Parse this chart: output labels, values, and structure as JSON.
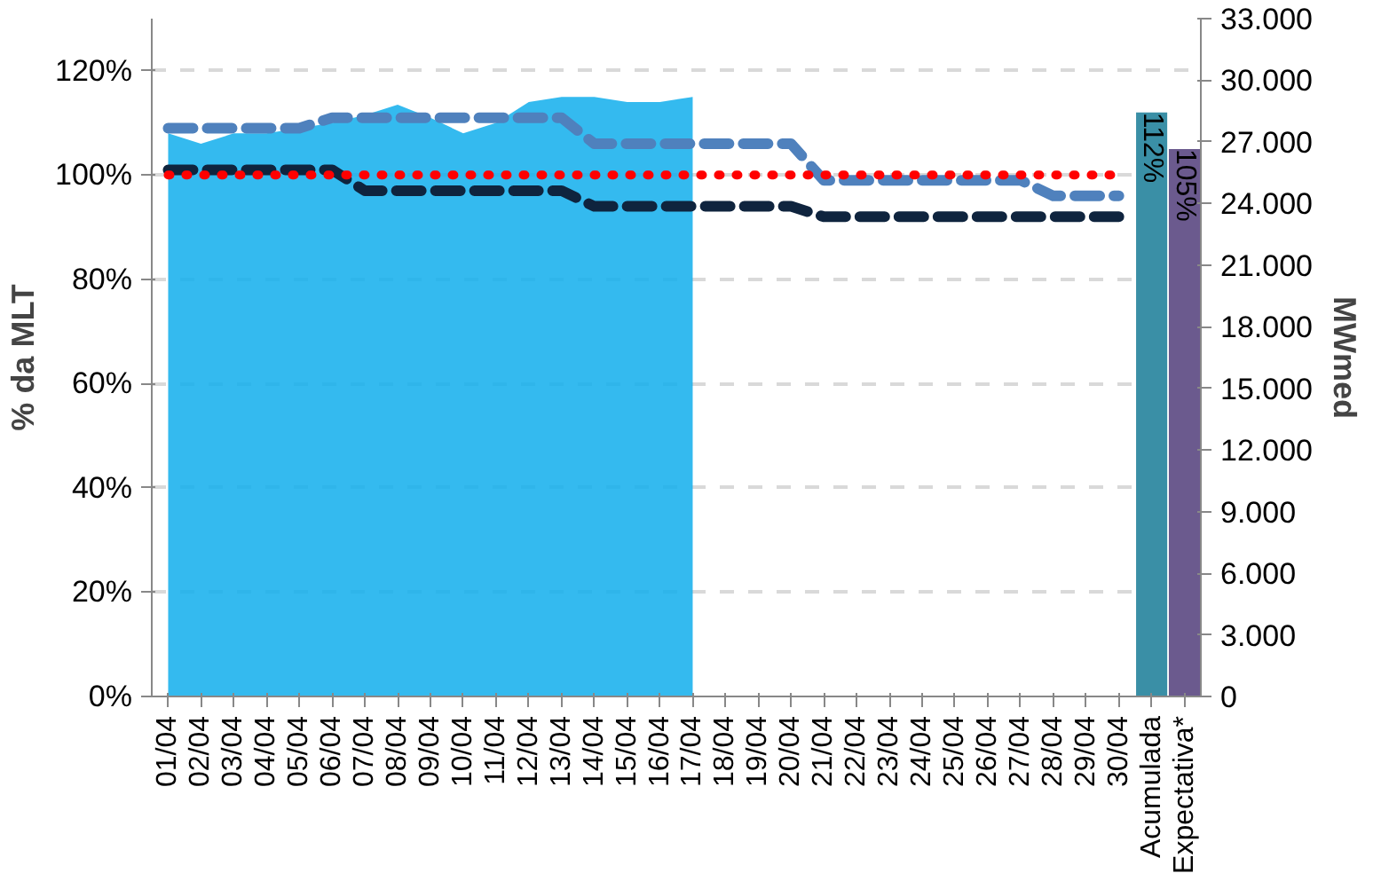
{
  "chart_data": {
    "type": "bar",
    "ylabel": "% da MLT",
    "y2label": "MWmed",
    "categories": [
      "01/04",
      "02/04",
      "03/04",
      "04/04",
      "05/04",
      "06/04",
      "07/04",
      "08/04",
      "09/04",
      "10/04",
      "11/04",
      "12/04",
      "13/04",
      "14/04",
      "15/04",
      "16/04",
      "17/04",
      "18/04",
      "19/04",
      "20/04",
      "21/04",
      "22/04",
      "23/04",
      "24/04",
      "25/04",
      "26/04",
      "27/04",
      "28/04",
      "29/04",
      "30/04",
      "Acumulada",
      "Expectativa*"
    ],
    "series": [
      {
        "type": "area",
        "color": "#10aeec",
        "values": [
          108,
          106,
          108,
          108,
          109,
          110,
          111.5,
          113.5,
          111,
          108,
          110,
          114,
          115,
          115,
          114,
          114,
          115,
          null,
          null,
          null,
          null,
          null,
          null,
          null,
          null,
          null,
          null,
          null,
          null,
          null,
          null,
          null
        ]
      },
      {
        "type": "line",
        "color": "#4f81bd",
        "line_style": "dashed",
        "values": [
          109,
          109,
          109,
          109,
          109,
          111,
          111,
          111,
          111,
          111,
          111,
          111,
          111,
          106,
          106,
          106,
          106,
          106,
          106,
          106,
          99,
          99,
          99,
          99,
          99,
          99,
          99,
          96,
          96,
          96,
          null,
          null
        ]
      },
      {
        "type": "line",
        "color": "#0f243e",
        "line_style": "dashed",
        "values": [
          101,
          101,
          101,
          101,
          101,
          101,
          97,
          97,
          97,
          97,
          97,
          97,
          97,
          94,
          94,
          94,
          94,
          94,
          94,
          94,
          92,
          92,
          92,
          92,
          92,
          92,
          92,
          92,
          92,
          92,
          null,
          null
        ]
      },
      {
        "type": "line",
        "color": "#ff0000",
        "line_style": "dotted",
        "values": [
          100,
          100,
          100,
          100,
          100,
          100,
          100,
          100,
          100,
          100,
          100,
          100,
          100,
          100,
          100,
          100,
          100,
          100,
          100,
          100,
          100,
          100,
          100,
          100,
          100,
          100,
          100,
          100,
          100,
          100,
          null,
          null
        ]
      },
      {
        "color": "#3a8fa6",
        "values": [
          null,
          null,
          null,
          null,
          null,
          null,
          null,
          null,
          null,
          null,
          null,
          null,
          null,
          null,
          null,
          null,
          null,
          null,
          null,
          null,
          null,
          null,
          null,
          null,
          null,
          null,
          null,
          null,
          null,
          null,
          112,
          null
        ],
        "value_labels": [
          null,
          null,
          null,
          null,
          null,
          null,
          null,
          null,
          null,
          null,
          null,
          null,
          null,
          null,
          null,
          null,
          null,
          null,
          null,
          null,
          null,
          null,
          null,
          null,
          null,
          null,
          null,
          null,
          null,
          null,
          "112%",
          null
        ]
      },
      {
        "color": "#6b5a8e",
        "values": [
          null,
          null,
          null,
          null,
          null,
          null,
          null,
          null,
          null,
          null,
          null,
          null,
          null,
          null,
          null,
          null,
          null,
          null,
          null,
          null,
          null,
          null,
          null,
          null,
          null,
          null,
          null,
          null,
          null,
          null,
          null,
          105
        ],
        "value_labels": [
          null,
          null,
          null,
          null,
          null,
          null,
          null,
          null,
          null,
          null,
          null,
          null,
          null,
          null,
          null,
          null,
          null,
          null,
          null,
          null,
          null,
          null,
          null,
          null,
          null,
          null,
          null,
          null,
          null,
          null,
          null,
          "105%"
        ]
      }
    ],
    "ylim": [
      0,
      130
    ],
    "yticks": [
      {
        "value": 0,
        "label": "0%"
      },
      {
        "value": 20,
        "label": "20%"
      },
      {
        "value": 40,
        "label": "40%"
      },
      {
        "value": 60,
        "label": "60%"
      },
      {
        "value": 80,
        "label": "80%"
      },
      {
        "value": 100,
        "label": "100%"
      },
      {
        "value": 120,
        "label": "120%"
      }
    ],
    "y2lim": [
      0,
      33000
    ],
    "y2ticks": [
      0,
      {
        "value": 3000,
        "label": "3.000"
      },
      {
        "value": 6000,
        "label": "6.000"
      },
      {
        "value": 9000,
        "label": "9.000"
      },
      {
        "value": 12000,
        "label": "12.000"
      },
      {
        "value": 15000,
        "label": "15.000"
      },
      {
        "value": 18000,
        "label": "18.000"
      },
      {
        "value": 21000,
        "label": "21.000"
      },
      {
        "value": 24000,
        "label": "24.000"
      },
      {
        "value": 27000,
        "label": "27.000"
      },
      {
        "value": 30000,
        "label": "30.000"
      },
      {
        "value": 33000,
        "label": "33.000"
      }
    ],
    "grid": "y",
    "marker": "none"
  }
}
